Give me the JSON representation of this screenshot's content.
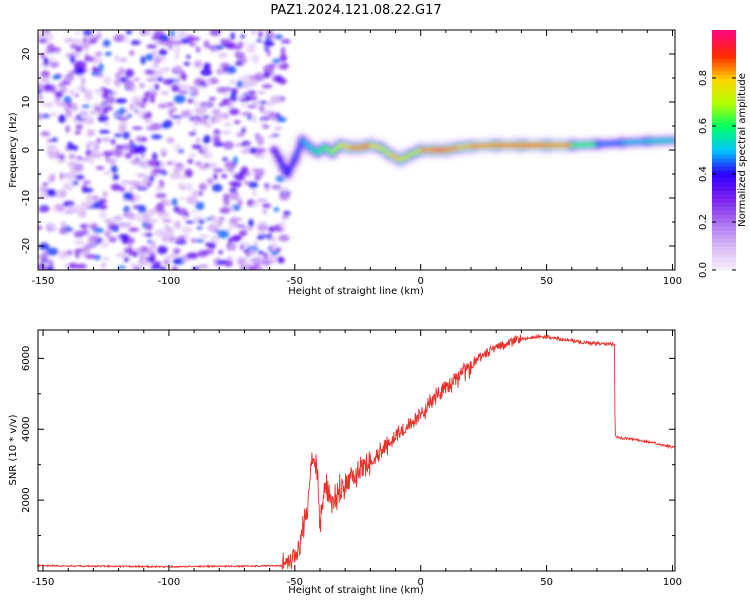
{
  "title": "PAZ1.2024.121.08.22.G17",
  "colors": {
    "snr_line": "#e8312b",
    "axis": "#000000",
    "background": "#ffffff",
    "colormap": [
      "#f3ecfb",
      "#d8b6f5",
      "#a76cf0",
      "#7a1ef0",
      "#2b00ff",
      "#00c8ff",
      "#00ff66",
      "#b4ff00",
      "#ffd400",
      "#ff2a00",
      "#ff0a78"
    ]
  },
  "chart_data": [
    {
      "type": "heatmap",
      "xlabel": "Height of straight line (km)",
      "ylabel": "Frequency (Hz)",
      "xlim": [
        -152,
        101
      ],
      "ylim": [
        -25,
        25
      ],
      "xticks": [
        -150,
        -100,
        -50,
        0,
        50,
        100
      ],
      "yticks": [
        -20,
        -10,
        0,
        10,
        20
      ],
      "colorbar": {
        "label": "Normalized spectral amplitude",
        "range": [
          0,
          1
        ],
        "ticks": [
          "0.0",
          "0.2",
          "0.4",
          "0.6",
          "0.8"
        ],
        "tick_values": [
          0.0,
          0.2,
          0.4,
          0.6,
          0.8
        ]
      },
      "noise_region_x": [
        -152,
        -53
      ],
      "ridge": {
        "x": [
          -58,
          -56,
          -53,
          -50,
          -47,
          -44,
          -41,
          -38,
          -35,
          -32,
          -28,
          -24,
          -20,
          -16,
          -12,
          -8,
          -4,
          0,
          5,
          10,
          15,
          20,
          30,
          40,
          50,
          60,
          70,
          80,
          90,
          100
        ],
        "y": [
          0,
          -2,
          -5,
          -2,
          2,
          0.5,
          -0.5,
          0.5,
          -0.5,
          1,
          0.5,
          0.5,
          1,
          0.5,
          -1,
          -2,
          -1,
          0,
          0,
          0,
          0.5,
          0.8,
          1,
          1,
          1,
          1,
          1.2,
          1.5,
          1.8,
          2
        ],
        "amplitude": [
          0.35,
          0.4,
          0.45,
          0.4,
          0.5,
          0.55,
          0.6,
          0.65,
          0.7,
          0.75,
          0.85,
          0.9,
          0.9,
          0.7,
          0.8,
          0.85,
          0.7,
          0.8,
          0.95,
          0.95,
          0.8,
          0.85,
          0.9,
          0.9,
          0.95,
          0.8,
          0.5,
          0.45,
          0.6,
          0.5
        ]
      }
    },
    {
      "type": "line",
      "xlabel": "Height of straight line (km)",
      "ylabel": "SNR (10 * v/v)",
      "xlim": [
        -152,
        101
      ],
      "ylim": [
        0,
        6800
      ],
      "xticks": [
        -150,
        -100,
        -50,
        0,
        50,
        100
      ],
      "yticks": [
        2000,
        4000,
        6000
      ],
      "series": [
        {
          "x": [
            -152,
            -100,
            -55,
            -52,
            -48,
            -45,
            -43,
            -41,
            -40,
            -38,
            -35,
            -30,
            -25,
            -20,
            -15,
            -10,
            -5,
            0,
            5,
            10,
            15,
            20,
            25,
            30,
            35,
            40,
            45,
            50,
            55,
            60,
            65,
            70,
            75,
            77,
            77.2,
            80,
            90,
            100
          ],
          "y": [
            150,
            120,
            150,
            250,
            700,
            1800,
            3200,
            2800,
            1200,
            2500,
            1900,
            2400,
            2800,
            3100,
            3400,
            3800,
            4100,
            4400,
            4800,
            5200,
            5500,
            5800,
            6100,
            6300,
            6450,
            6550,
            6600,
            6600,
            6550,
            6500,
            6450,
            6420,
            6400,
            6400,
            3800,
            3750,
            3650,
            3500
          ]
        }
      ]
    }
  ]
}
